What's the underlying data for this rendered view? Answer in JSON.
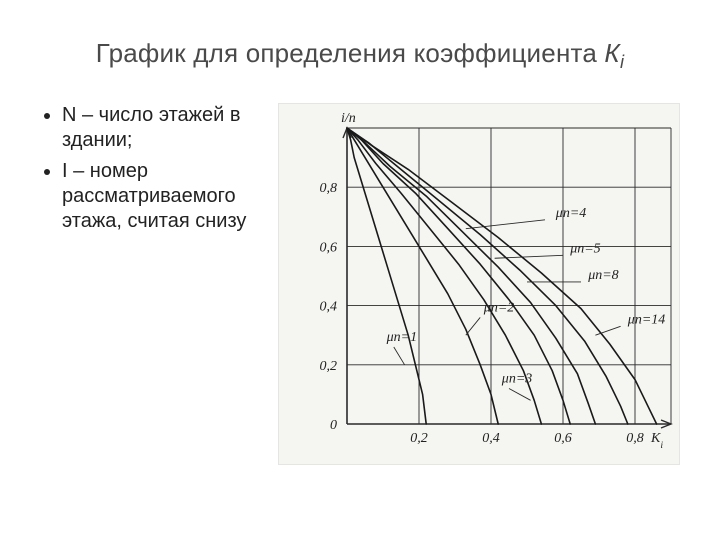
{
  "title_main": "График для определения коэффициента ",
  "title_symbol": "К",
  "title_sub": "i",
  "bullets": [
    "N – число этажей в здании;",
    "I – номер рассматриваемого этажа, считая снизу"
  ],
  "chart": {
    "type": "line",
    "background_color": "#f5f5f2",
    "plot_bg": "#f5f5f2",
    "grid_color": "#2a2a2a",
    "curve_color": "#1a1a1a",
    "text_color": "#222222",
    "font_family": "Times New Roman, serif",
    "label_fontsize": 14,
    "tick_fontsize": 14,
    "xlim": [
      0,
      0.9
    ],
    "ylim": [
      0,
      1.0
    ],
    "xtick_step": 0.2,
    "ytick_step": 0.2,
    "x_ticks": [
      "0,2",
      "0,4",
      "0,6",
      "0,8"
    ],
    "y_ticks": [
      "0",
      "0,2",
      "0,4",
      "0,6",
      "0,8"
    ],
    "y_axis_label": "i/n",
    "x_axis_label": "Kᵢ",
    "x_axis_label_plain": "K",
    "x_axis_label_sub": "i",
    "leader_color": "#2a2a2a",
    "line_width": 1.6,
    "grid_width": 0.9,
    "curves": [
      {
        "label": "μn=1",
        "label_pos": {
          "x": 0.11,
          "y": 0.28
        },
        "leader": [
          [
            0.13,
            0.26
          ],
          [
            0.16,
            0.2
          ]
        ],
        "points": [
          [
            0.0,
            1.0
          ],
          [
            0.01,
            0.96
          ],
          [
            0.02,
            0.9
          ],
          [
            0.05,
            0.78
          ],
          [
            0.08,
            0.66
          ],
          [
            0.11,
            0.54
          ],
          [
            0.14,
            0.42
          ],
          [
            0.17,
            0.3
          ],
          [
            0.19,
            0.2
          ],
          [
            0.21,
            0.1
          ],
          [
            0.22,
            0.0
          ]
        ]
      },
      {
        "label": "μn=2",
        "label_pos": {
          "x": 0.38,
          "y": 0.38
        },
        "leader": [
          [
            0.37,
            0.36
          ],
          [
            0.33,
            0.3
          ]
        ],
        "points": [
          [
            0.0,
            1.0
          ],
          [
            0.02,
            0.96
          ],
          [
            0.05,
            0.9
          ],
          [
            0.1,
            0.8
          ],
          [
            0.16,
            0.68
          ],
          [
            0.22,
            0.56
          ],
          [
            0.28,
            0.44
          ],
          [
            0.33,
            0.32
          ],
          [
            0.37,
            0.2
          ],
          [
            0.4,
            0.1
          ],
          [
            0.42,
            0.0
          ]
        ]
      },
      {
        "label": "μn=3",
        "label_pos": {
          "x": 0.43,
          "y": 0.14
        },
        "leader": [
          [
            0.45,
            0.12
          ],
          [
            0.51,
            0.08
          ]
        ],
        "points": [
          [
            0.0,
            1.0
          ],
          [
            0.03,
            0.96
          ],
          [
            0.08,
            0.88
          ],
          [
            0.15,
            0.78
          ],
          [
            0.23,
            0.66
          ],
          [
            0.31,
            0.54
          ],
          [
            0.38,
            0.42
          ],
          [
            0.44,
            0.3
          ],
          [
            0.49,
            0.18
          ],
          [
            0.52,
            0.08
          ],
          [
            0.54,
            0.0
          ]
        ]
      },
      {
        "label": "μn=4",
        "label_pos": {
          "x": 0.58,
          "y": 0.7
        },
        "leader": [
          [
            0.55,
            0.69
          ],
          [
            0.33,
            0.66
          ]
        ],
        "points": [
          [
            0.0,
            1.0
          ],
          [
            0.04,
            0.96
          ],
          [
            0.1,
            0.88
          ],
          [
            0.19,
            0.78
          ],
          [
            0.28,
            0.66
          ],
          [
            0.37,
            0.54
          ],
          [
            0.45,
            0.42
          ],
          [
            0.52,
            0.3
          ],
          [
            0.57,
            0.18
          ],
          [
            0.6,
            0.08
          ],
          [
            0.62,
            0.0
          ]
        ]
      },
      {
        "label": "μn=5",
        "label_pos": {
          "x": 0.62,
          "y": 0.58
        },
        "leader": [
          [
            0.6,
            0.57
          ],
          [
            0.41,
            0.56
          ]
        ],
        "points": [
          [
            0.0,
            1.0
          ],
          [
            0.05,
            0.95
          ],
          [
            0.12,
            0.87
          ],
          [
            0.22,
            0.77
          ],
          [
            0.32,
            0.65
          ],
          [
            0.42,
            0.53
          ],
          [
            0.51,
            0.41
          ],
          [
            0.58,
            0.29
          ],
          [
            0.64,
            0.17
          ],
          [
            0.67,
            0.07
          ],
          [
            0.69,
            0.0
          ]
        ]
      },
      {
        "label": "μn=8",
        "label_pos": {
          "x": 0.67,
          "y": 0.49
        },
        "leader": [
          [
            0.65,
            0.48
          ],
          [
            0.5,
            0.48
          ]
        ],
        "points": [
          [
            0.0,
            1.0
          ],
          [
            0.06,
            0.95
          ],
          [
            0.14,
            0.87
          ],
          [
            0.25,
            0.76
          ],
          [
            0.37,
            0.64
          ],
          [
            0.48,
            0.52
          ],
          [
            0.58,
            0.4
          ],
          [
            0.66,
            0.28
          ],
          [
            0.72,
            0.16
          ],
          [
            0.76,
            0.06
          ],
          [
            0.78,
            0.0
          ]
        ]
      },
      {
        "label": "μn=14",
        "label_pos": {
          "x": 0.78,
          "y": 0.34
        },
        "leader": [
          [
            0.76,
            0.33
          ],
          [
            0.69,
            0.3
          ]
        ],
        "points": [
          [
            0.0,
            1.0
          ],
          [
            0.07,
            0.94
          ],
          [
            0.17,
            0.86
          ],
          [
            0.29,
            0.75
          ],
          [
            0.42,
            0.63
          ],
          [
            0.54,
            0.51
          ],
          [
            0.65,
            0.39
          ],
          [
            0.73,
            0.27
          ],
          [
            0.8,
            0.15
          ],
          [
            0.84,
            0.05
          ],
          [
            0.86,
            0.0
          ]
        ]
      }
    ]
  }
}
